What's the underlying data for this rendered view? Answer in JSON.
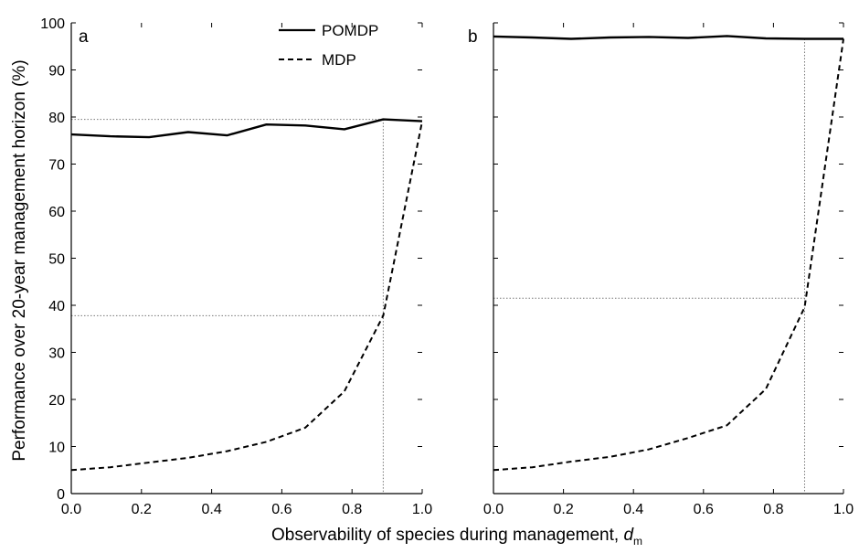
{
  "chart_data": {
    "type": "line",
    "ylabel": "Performance over 20-year management horizon (%)",
    "xlabel": "Observability of species during management, ",
    "xlabel_symbol": "d",
    "xlabel_subscript": "m",
    "xlim": [
      0.0,
      1.0
    ],
    "ylim": [
      0,
      100
    ],
    "x_ticks": [
      "0.0",
      "0.2",
      "0.4",
      "0.6",
      "0.8",
      "1.0"
    ],
    "y_ticks": [
      "0",
      "10",
      "20",
      "30",
      "40",
      "50",
      "60",
      "70",
      "80",
      "90",
      "100"
    ],
    "legend": {
      "placement": "top-right of left panel",
      "entries": [
        {
          "label": "POMDP",
          "style": "solid"
        },
        {
          "label": "MDP",
          "style": "dashed"
        }
      ]
    },
    "panels": [
      {
        "label": "a",
        "x": [
          0.0,
          0.111,
          0.222,
          0.333,
          0.444,
          0.556,
          0.667,
          0.778,
          0.889,
          1.0
        ],
        "series": [
          {
            "name": "POMDP",
            "style": "solid",
            "values": [
              76.3,
              75.9,
              75.7,
              76.8,
              76.1,
              78.4,
              78.2,
              77.4,
              79.5,
              79.1
            ]
          },
          {
            "name": "MDP",
            "style": "dashed",
            "values": [
              5.0,
              5.6,
              6.6,
              7.6,
              9.0,
              11.0,
              14.0,
              21.7,
              37.8,
              79.1
            ]
          }
        ],
        "reference_lines": {
          "x": 0.889,
          "y": [
            79.5,
            37.8
          ]
        }
      },
      {
        "label": "b",
        "x": [
          0.0,
          0.111,
          0.222,
          0.333,
          0.444,
          0.556,
          0.667,
          0.778,
          0.889,
          1.0
        ],
        "series": [
          {
            "name": "POMDP",
            "style": "solid",
            "values": [
              97.1,
              96.9,
              96.6,
              96.9,
              97.0,
              96.8,
              97.2,
              96.7,
              96.6,
              96.6
            ]
          },
          {
            "name": "MDP",
            "style": "dashed",
            "values": [
              5.0,
              5.6,
              6.8,
              7.8,
              9.4,
              11.8,
              14.5,
              22.2,
              39.6,
              96.6
            ]
          }
        ],
        "reference_lines": {
          "x": 0.889,
          "y": [
            41.5
          ]
        }
      }
    ]
  }
}
